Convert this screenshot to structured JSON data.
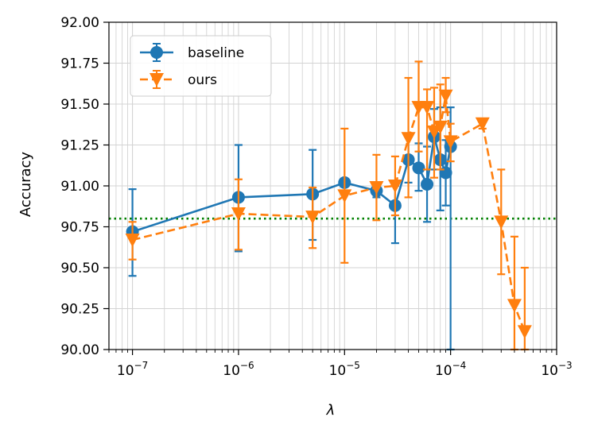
{
  "chart_data": {
    "type": "line",
    "title": "",
    "xlabel": "λ",
    "ylabel": "Accuracy",
    "xscale": "log",
    "xlim": [
      6e-08,
      0.001
    ],
    "ylim": [
      90.0,
      92.0
    ],
    "x_ticks": [
      {
        "value": 1e-07,
        "base": "10",
        "exp": "−7"
      },
      {
        "value": 1e-06,
        "base": "10",
        "exp": "−6"
      },
      {
        "value": 1e-05,
        "base": "10",
        "exp": "−5"
      },
      {
        "value": 0.0001,
        "base": "10",
        "exp": "−4"
      },
      {
        "value": 0.001,
        "base": "10",
        "exp": "−3"
      }
    ],
    "y_ticks": [
      "90.00",
      "90.25",
      "90.50",
      "90.75",
      "91.00",
      "91.25",
      "91.50",
      "91.75",
      "92.00"
    ],
    "grid": "major and minor",
    "legend_position": "upper-left",
    "reference_line": {
      "y": 90.8,
      "color": "#008000",
      "style": "dotted"
    },
    "series": [
      {
        "name": "baseline",
        "color": "#1f77b4",
        "marker": "circle",
        "linestyle": "solid",
        "points": [
          {
            "x": 1e-07,
            "y": 90.72,
            "lo": 90.45,
            "hi": 90.98
          },
          {
            "x": 1e-06,
            "y": 90.93,
            "lo": 90.6,
            "hi": 91.25
          },
          {
            "x": 5e-06,
            "y": 90.95,
            "lo": 90.67,
            "hi": 91.22
          },
          {
            "x": 1e-05,
            "y": 91.02
          },
          {
            "x": 2e-05,
            "y": 90.97,
            "lo": 90.93,
            "hi": 91.02
          },
          {
            "x": 3e-05,
            "y": 90.88,
            "lo": 90.65,
            "hi": 91.0
          },
          {
            "x": 4e-05,
            "y": 91.16,
            "lo": 91.02,
            "hi": 91.3
          },
          {
            "x": 5e-05,
            "y": 91.11,
            "lo": 90.97,
            "hi": 91.26
          },
          {
            "x": 6e-05,
            "y": 91.01,
            "lo": 90.78,
            "hi": 91.24
          },
          {
            "x": 7e-05,
            "y": 91.3,
            "lo": 91.1,
            "hi": 91.47
          },
          {
            "x": 8e-05,
            "y": 91.16,
            "lo": 90.85,
            "hi": 91.48
          },
          {
            "x": 9e-05,
            "y": 91.08,
            "lo": 90.88,
            "hi": 91.28
          },
          {
            "x": 0.0001,
            "y": 91.24,
            "lo": 90.0,
            "hi": 91.48
          }
        ]
      },
      {
        "name": "ours",
        "color": "#ff7f0e",
        "marker": "triangle-down",
        "linestyle": "dashed",
        "points": [
          {
            "x": 1e-07,
            "y": 90.67,
            "lo": 90.55,
            "hi": 90.78
          },
          {
            "x": 1e-06,
            "y": 90.83,
            "lo": 90.61,
            "hi": 91.04
          },
          {
            "x": 5e-06,
            "y": 90.81,
            "lo": 90.62,
            "hi": 90.99
          },
          {
            "x": 1e-05,
            "y": 90.94,
            "lo": 90.53,
            "hi": 91.35
          },
          {
            "x": 2e-05,
            "y": 90.99,
            "lo": 90.79,
            "hi": 91.19
          },
          {
            "x": 3e-05,
            "y": 91.0,
            "lo": 90.82,
            "hi": 91.18
          },
          {
            "x": 4e-05,
            "y": 91.29,
            "lo": 90.93,
            "hi": 91.66
          },
          {
            "x": 5e-05,
            "y": 91.48,
            "lo": 91.21,
            "hi": 91.76
          },
          {
            "x": 6e-05,
            "y": 91.48,
            "lo": 91.1,
            "hi": 91.59
          },
          {
            "x": 7e-05,
            "y": 91.33,
            "lo": 91.05,
            "hi": 91.6
          },
          {
            "x": 8e-05,
            "y": 91.36,
            "lo": 91.1,
            "hi": 91.62
          },
          {
            "x": 9e-05,
            "y": 91.55,
            "lo": 91.45,
            "hi": 91.66
          },
          {
            "x": 0.0001,
            "y": 91.27,
            "lo": 91.15,
            "hi": 91.38
          },
          {
            "x": 0.0002,
            "y": 91.38,
            "lo": 91.35,
            "hi": 91.41
          },
          {
            "x": 0.0003,
            "y": 90.78,
            "lo": 90.46,
            "hi": 91.1
          },
          {
            "x": 0.0004,
            "y": 90.27,
            "lo": 90.0,
            "hi": 90.69
          },
          {
            "x": 0.0005,
            "y": 90.11,
            "lo": 90.0,
            "hi": 90.5
          }
        ]
      }
    ]
  }
}
